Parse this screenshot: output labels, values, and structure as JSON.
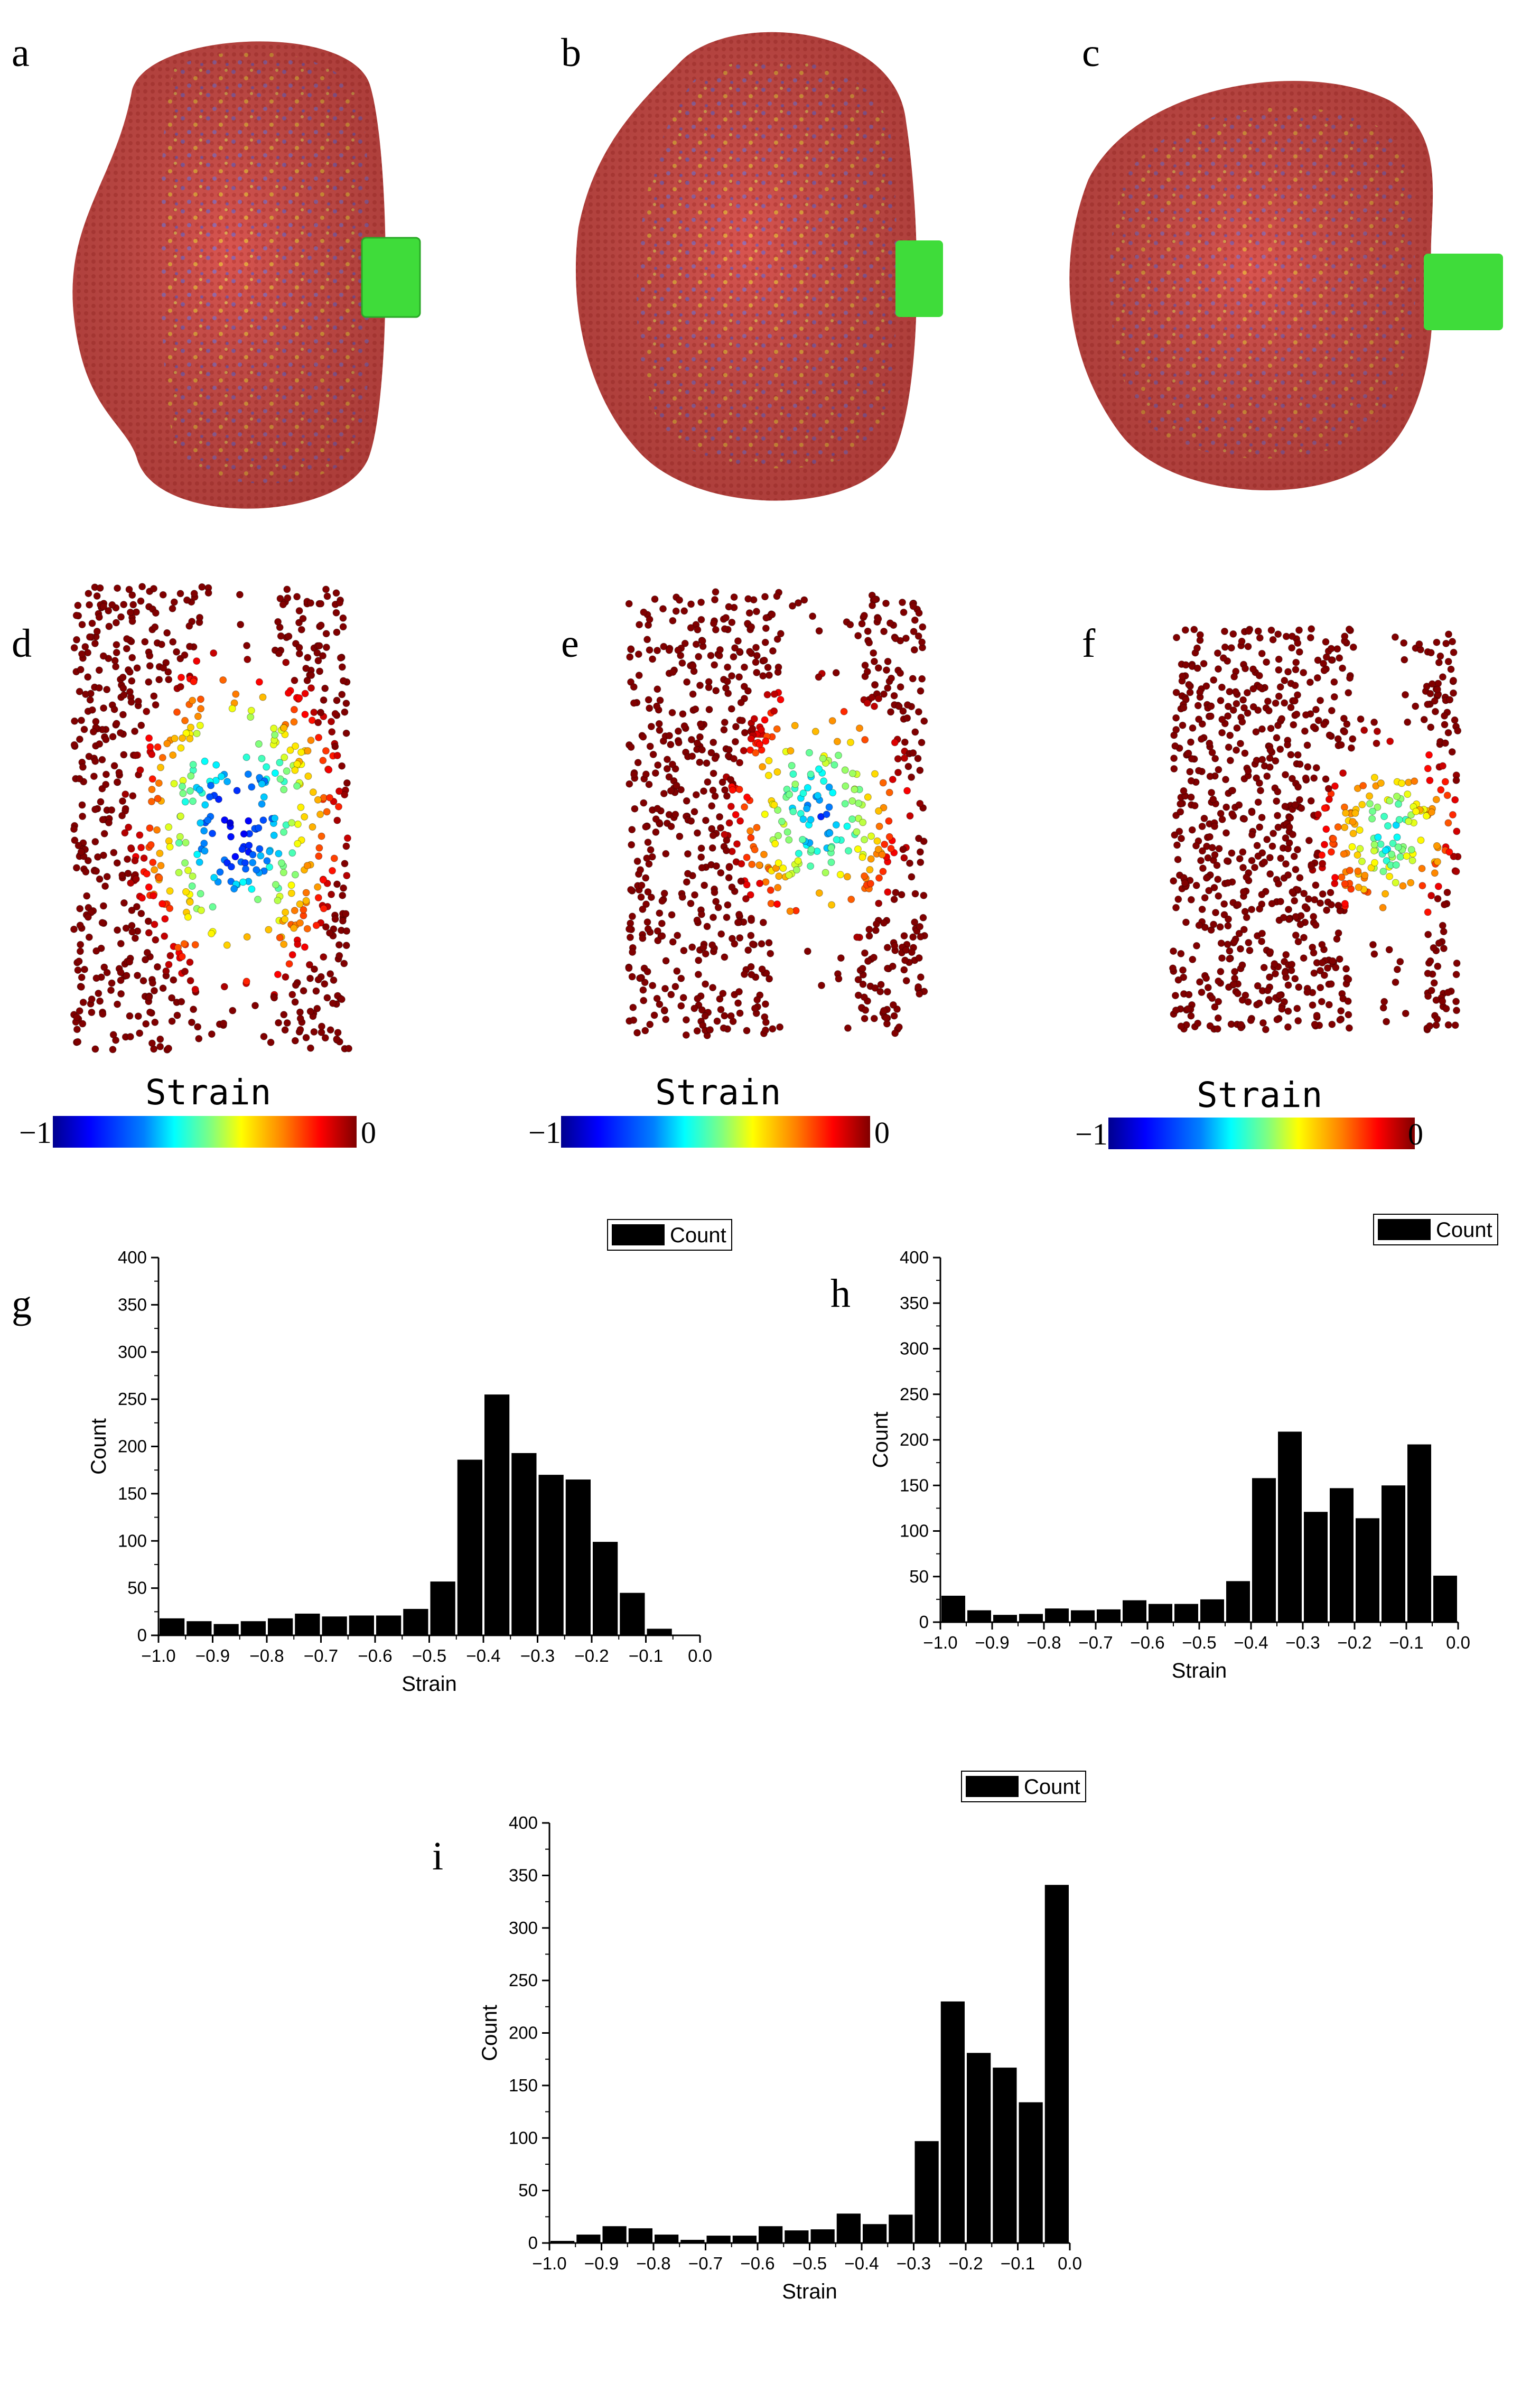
{
  "panels_top": [
    {
      "letter": "a",
      "image": "cell-membrane-render-a"
    },
    {
      "letter": "b",
      "image": "cell-membrane-render-b"
    },
    {
      "letter": "c",
      "image": "cell-membrane-render-c"
    }
  ],
  "panels_mid": [
    {
      "letter": "d",
      "image": "strain-scatter-d",
      "colorbar_label": "Strain",
      "cb_min": "−1",
      "cb_max": "0"
    },
    {
      "letter": "e",
      "image": "strain-scatter-e",
      "colorbar_label": "Strain",
      "cb_min": "−1",
      "cb_max": "0"
    },
    {
      "letter": "f",
      "image": "strain-scatter-f",
      "colorbar_label": "Strain",
      "cb_min": "−1",
      "cb_max": "0"
    }
  ],
  "colors": {
    "membrane": "#d95550",
    "probe": "#3fdc3a",
    "bar": "#000000"
  },
  "chart_data": [
    {
      "panel": "g",
      "type": "bar",
      "xlabel": "Strain",
      "ylabel": "Count",
      "legend": "Count",
      "xlim": [
        -1.0,
        0.0
      ],
      "ylim": [
        0,
        400
      ],
      "xticks": [
        "-1.0",
        "-0.9",
        "-0.8",
        "-0.7",
        "-0.6",
        "-0.5",
        "-0.4",
        "-0.3",
        "-0.2",
        "-0.1",
        "0.0"
      ],
      "yticks": [
        "0",
        "50",
        "100",
        "150",
        "200",
        "250",
        "300",
        "350",
        "400"
      ],
      "bin_width": 0.05,
      "bin_starts": [
        -1.0,
        -0.95,
        -0.9,
        -0.85,
        -0.8,
        -0.75,
        -0.7,
        -0.65,
        -0.6,
        -0.55,
        -0.5,
        -0.45,
        -0.4,
        -0.35,
        -0.3,
        -0.25,
        -0.2,
        -0.15,
        -0.1
      ],
      "values": [
        18,
        15,
        12,
        15,
        18,
        23,
        20,
        21,
        21,
        28,
        57,
        186,
        255,
        193,
        170,
        165,
        99,
        45,
        7
      ]
    },
    {
      "panel": "h",
      "type": "bar",
      "xlabel": "Strain",
      "ylabel": "Count",
      "legend": "Count",
      "xlim": [
        -1.0,
        0.0
      ],
      "ylim": [
        0,
        400
      ],
      "xticks": [
        "-1.0",
        "-0.9",
        "-0.8",
        "-0.7",
        "-0.6",
        "-0.5",
        "-0.4",
        "-0.3",
        "-0.2",
        "-0.1",
        "0.0"
      ],
      "yticks": [
        "0",
        "50",
        "100",
        "150",
        "200",
        "250",
        "300",
        "350",
        "400"
      ],
      "bin_width": 0.05,
      "bin_starts": [
        -1.0,
        -0.95,
        -0.9,
        -0.85,
        -0.8,
        -0.75,
        -0.7,
        -0.65,
        -0.6,
        -0.55,
        -0.5,
        -0.45,
        -0.4,
        -0.35,
        -0.3,
        -0.25,
        -0.2,
        -0.15,
        -0.1,
        -0.05
      ],
      "values": [
        29,
        13,
        8,
        9,
        15,
        13,
        14,
        24,
        20,
        20,
        25,
        45,
        158,
        209,
        121,
        147,
        114,
        150,
        195,
        51
      ]
    },
    {
      "panel": "i",
      "type": "bar",
      "xlabel": "Strain",
      "ylabel": "Count",
      "legend": "Count",
      "xlim": [
        -1.0,
        0.0
      ],
      "ylim": [
        0,
        400
      ],
      "xticks": [
        "-1.0",
        "-0.9",
        "-0.8",
        "-0.7",
        "-0.6",
        "-0.5",
        "-0.4",
        "-0.3",
        "-0.2",
        "-0.1",
        "0.0"
      ],
      "yticks": [
        "0",
        "50",
        "100",
        "150",
        "200",
        "250",
        "300",
        "350",
        "400"
      ],
      "bin_width": 0.05,
      "bin_starts": [
        -1.0,
        -0.95,
        -0.9,
        -0.85,
        -0.8,
        -0.75,
        -0.7,
        -0.65,
        -0.6,
        -0.55,
        -0.5,
        -0.45,
        -0.4,
        -0.35,
        -0.3,
        -0.25,
        -0.2,
        -0.15,
        -0.1,
        -0.05
      ],
      "values": [
        2,
        8,
        16,
        14,
        8,
        3,
        7,
        7,
        16,
        12,
        13,
        28,
        18,
        27,
        97,
        230,
        181,
        167,
        134,
        341
      ]
    }
  ]
}
